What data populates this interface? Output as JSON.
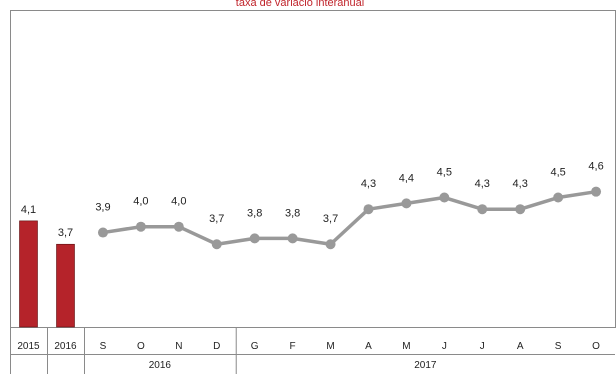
{
  "chart_data": {
    "type": "bar+line",
    "title": "taxa de variació interanual",
    "colors": {
      "bar": "#b5232a",
      "line": "#999999",
      "title": "#c0242b"
    },
    "annual_bars": {
      "categories": [
        "2015",
        "2016"
      ],
      "values": [
        4.1,
        3.7
      ],
      "labels": [
        "4,1",
        "3,7"
      ]
    },
    "monthly_line": {
      "categories": [
        "S",
        "O",
        "N",
        "D",
        "G",
        "F",
        "M",
        "A",
        "M",
        "J",
        "J",
        "A",
        "S",
        "O"
      ],
      "values": [
        3.9,
        4.0,
        4.0,
        3.7,
        3.8,
        3.8,
        3.7,
        4.3,
        4.4,
        4.5,
        4.3,
        4.3,
        4.5,
        4.6
      ],
      "labels": [
        "3,9",
        "4,0",
        "4,0",
        "3,7",
        "3,8",
        "3,8",
        "3,7",
        "4,3",
        "4,4",
        "4,5",
        "4,3",
        "4,3",
        "4,5",
        "4,6"
      ]
    },
    "year_groups": [
      {
        "label": "2016",
        "count": 4
      },
      {
        "label": "2017",
        "count": 10
      }
    ],
    "grid": false,
    "legend": "none"
  }
}
